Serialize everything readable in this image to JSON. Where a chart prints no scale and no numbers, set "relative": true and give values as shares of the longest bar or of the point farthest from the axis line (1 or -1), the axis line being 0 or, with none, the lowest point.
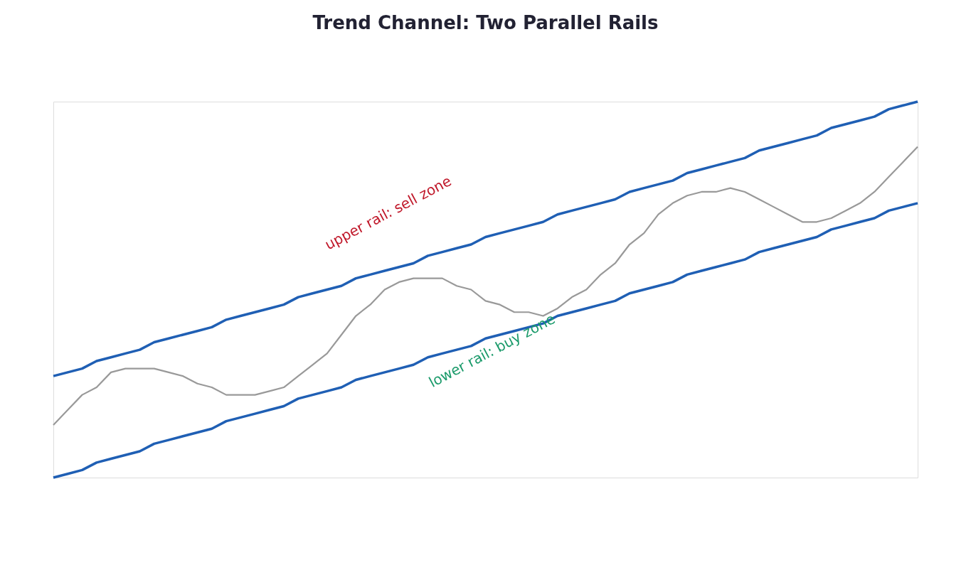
{
  "chart_data": {
    "type": "line",
    "title": "Trend Channel: Two Parallel Rails",
    "relative": true,
    "categories": [
      null,
      null,
      null,
      null,
      null,
      null,
      null,
      null,
      null,
      null,
      null,
      null,
      null,
      null,
      null,
      null,
      null,
      null,
      null,
      null,
      null,
      null,
      null,
      null,
      null,
      null,
      null,
      null,
      null,
      null,
      null,
      null,
      null,
      null,
      null,
      null,
      null,
      null,
      null,
      null,
      null,
      null,
      null,
      null,
      null,
      null,
      null,
      null,
      null,
      null,
      null,
      null,
      null,
      null,
      null,
      null,
      null,
      null,
      null,
      null,
      null
    ],
    "series": [
      {
        "color": "#1f5fb4",
        "values": [
          0.27,
          0.28,
          0.29,
          0.31,
          0.32,
          0.33,
          0.34,
          0.36,
          0.37,
          0.38,
          0.39,
          0.4,
          0.42,
          0.43,
          0.44,
          0.45,
          0.46,
          0.48,
          0.49,
          0.5,
          0.51,
          0.53,
          0.54,
          0.55,
          0.56,
          0.57,
          0.59,
          0.6,
          0.61,
          0.62,
          0.64,
          0.65,
          0.66,
          0.67,
          0.68,
          0.7,
          0.71,
          0.72,
          0.73,
          0.74,
          0.76,
          0.77,
          0.78,
          0.79,
          0.81,
          0.82,
          0.83,
          0.84,
          0.85,
          0.87,
          0.88,
          0.89,
          0.9,
          0.91,
          0.93,
          0.94,
          0.95,
          0.96,
          0.98,
          0.99,
          1.0
        ]
      },
      {
        "color": "#1f5fb4",
        "values": [
          0,
          0.01,
          0.02,
          0.04,
          0.05,
          0.06,
          0.07,
          0.09,
          0.1,
          0.11,
          0.12,
          0.13,
          0.15,
          0.16,
          0.17,
          0.18,
          0.19,
          0.21,
          0.22,
          0.23,
          0.24,
          0.26,
          0.27,
          0.28,
          0.29,
          0.3,
          0.32,
          0.33,
          0.34,
          0.35,
          0.37,
          0.38,
          0.39,
          0.4,
          0.41,
          0.43,
          0.44,
          0.45,
          0.46,
          0.47,
          0.49,
          0.5,
          0.51,
          0.52,
          0.54,
          0.55,
          0.56,
          0.57,
          0.58,
          0.6,
          0.61,
          0.62,
          0.63,
          0.64,
          0.66,
          0.67,
          0.68,
          0.69,
          0.71,
          0.72,
          0.73
        ]
      },
      {
        "color": "#999999",
        "values": [
          0.14,
          0.18,
          0.22,
          0.24,
          0.28,
          0.29,
          0.29,
          0.29,
          0.28,
          0.27,
          0.25,
          0.24,
          0.22,
          0.22,
          0.22,
          0.23,
          0.24,
          0.27,
          0.3,
          0.33,
          0.38,
          0.43,
          0.46,
          0.5,
          0.52,
          0.53,
          0.53,
          0.53,
          0.51,
          0.5,
          0.47,
          0.46,
          0.44,
          0.44,
          0.43,
          0.45,
          0.48,
          0.5,
          0.54,
          0.57,
          0.62,
          0.65,
          0.7,
          0.73,
          0.75,
          0.76,
          0.76,
          0.77,
          0.76,
          0.74,
          0.72,
          0.7,
          0.68,
          0.68,
          0.69,
          0.71,
          0.73,
          0.76,
          0.8,
          0.84,
          0.88
        ]
      }
    ],
    "annotations": [
      "upper rail: sell zone",
      "lower rail: buy zone"
    ]
  }
}
